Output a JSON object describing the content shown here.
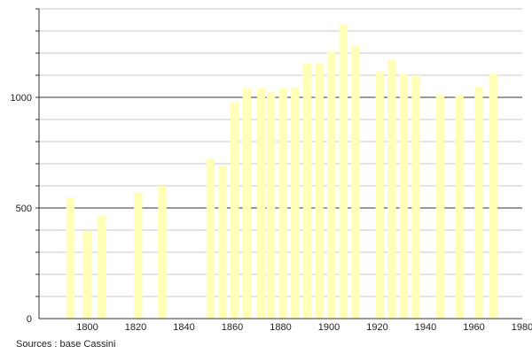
{
  "chart_data": {
    "type": "bar",
    "title": "",
    "xlabel": "",
    "ylabel": "",
    "xlim": [
      1780,
      1980
    ],
    "ylim": [
      0,
      1400
    ],
    "x_ticks": [
      "1800",
      "1820",
      "1840",
      "1860",
      "1880",
      "1900",
      "1920",
      "1940",
      "1960",
      "1980"
    ],
    "y_ticks": [
      "0",
      "500",
      "1000"
    ],
    "grid": true,
    "bar_color": "#ffffb8",
    "x": [
      1793,
      1800,
      1806,
      1821,
      1831,
      1851,
      1856,
      1861,
      1866,
      1872,
      1876,
      1881,
      1886,
      1891,
      1896,
      1901,
      1906,
      1911,
      1921,
      1926,
      1931,
      1936,
      1946,
      1954,
      1962,
      1968
    ],
    "values": [
      548,
      397,
      464,
      572,
      600,
      724,
      691,
      980,
      1040,
      1040,
      1023,
      1040,
      1045,
      1153,
      1153,
      1207,
      1331,
      1233,
      1117,
      1171,
      1107,
      1100,
      1013,
      1013,
      1047,
      1107
    ]
  },
  "source": "Sources : base Cassini"
}
